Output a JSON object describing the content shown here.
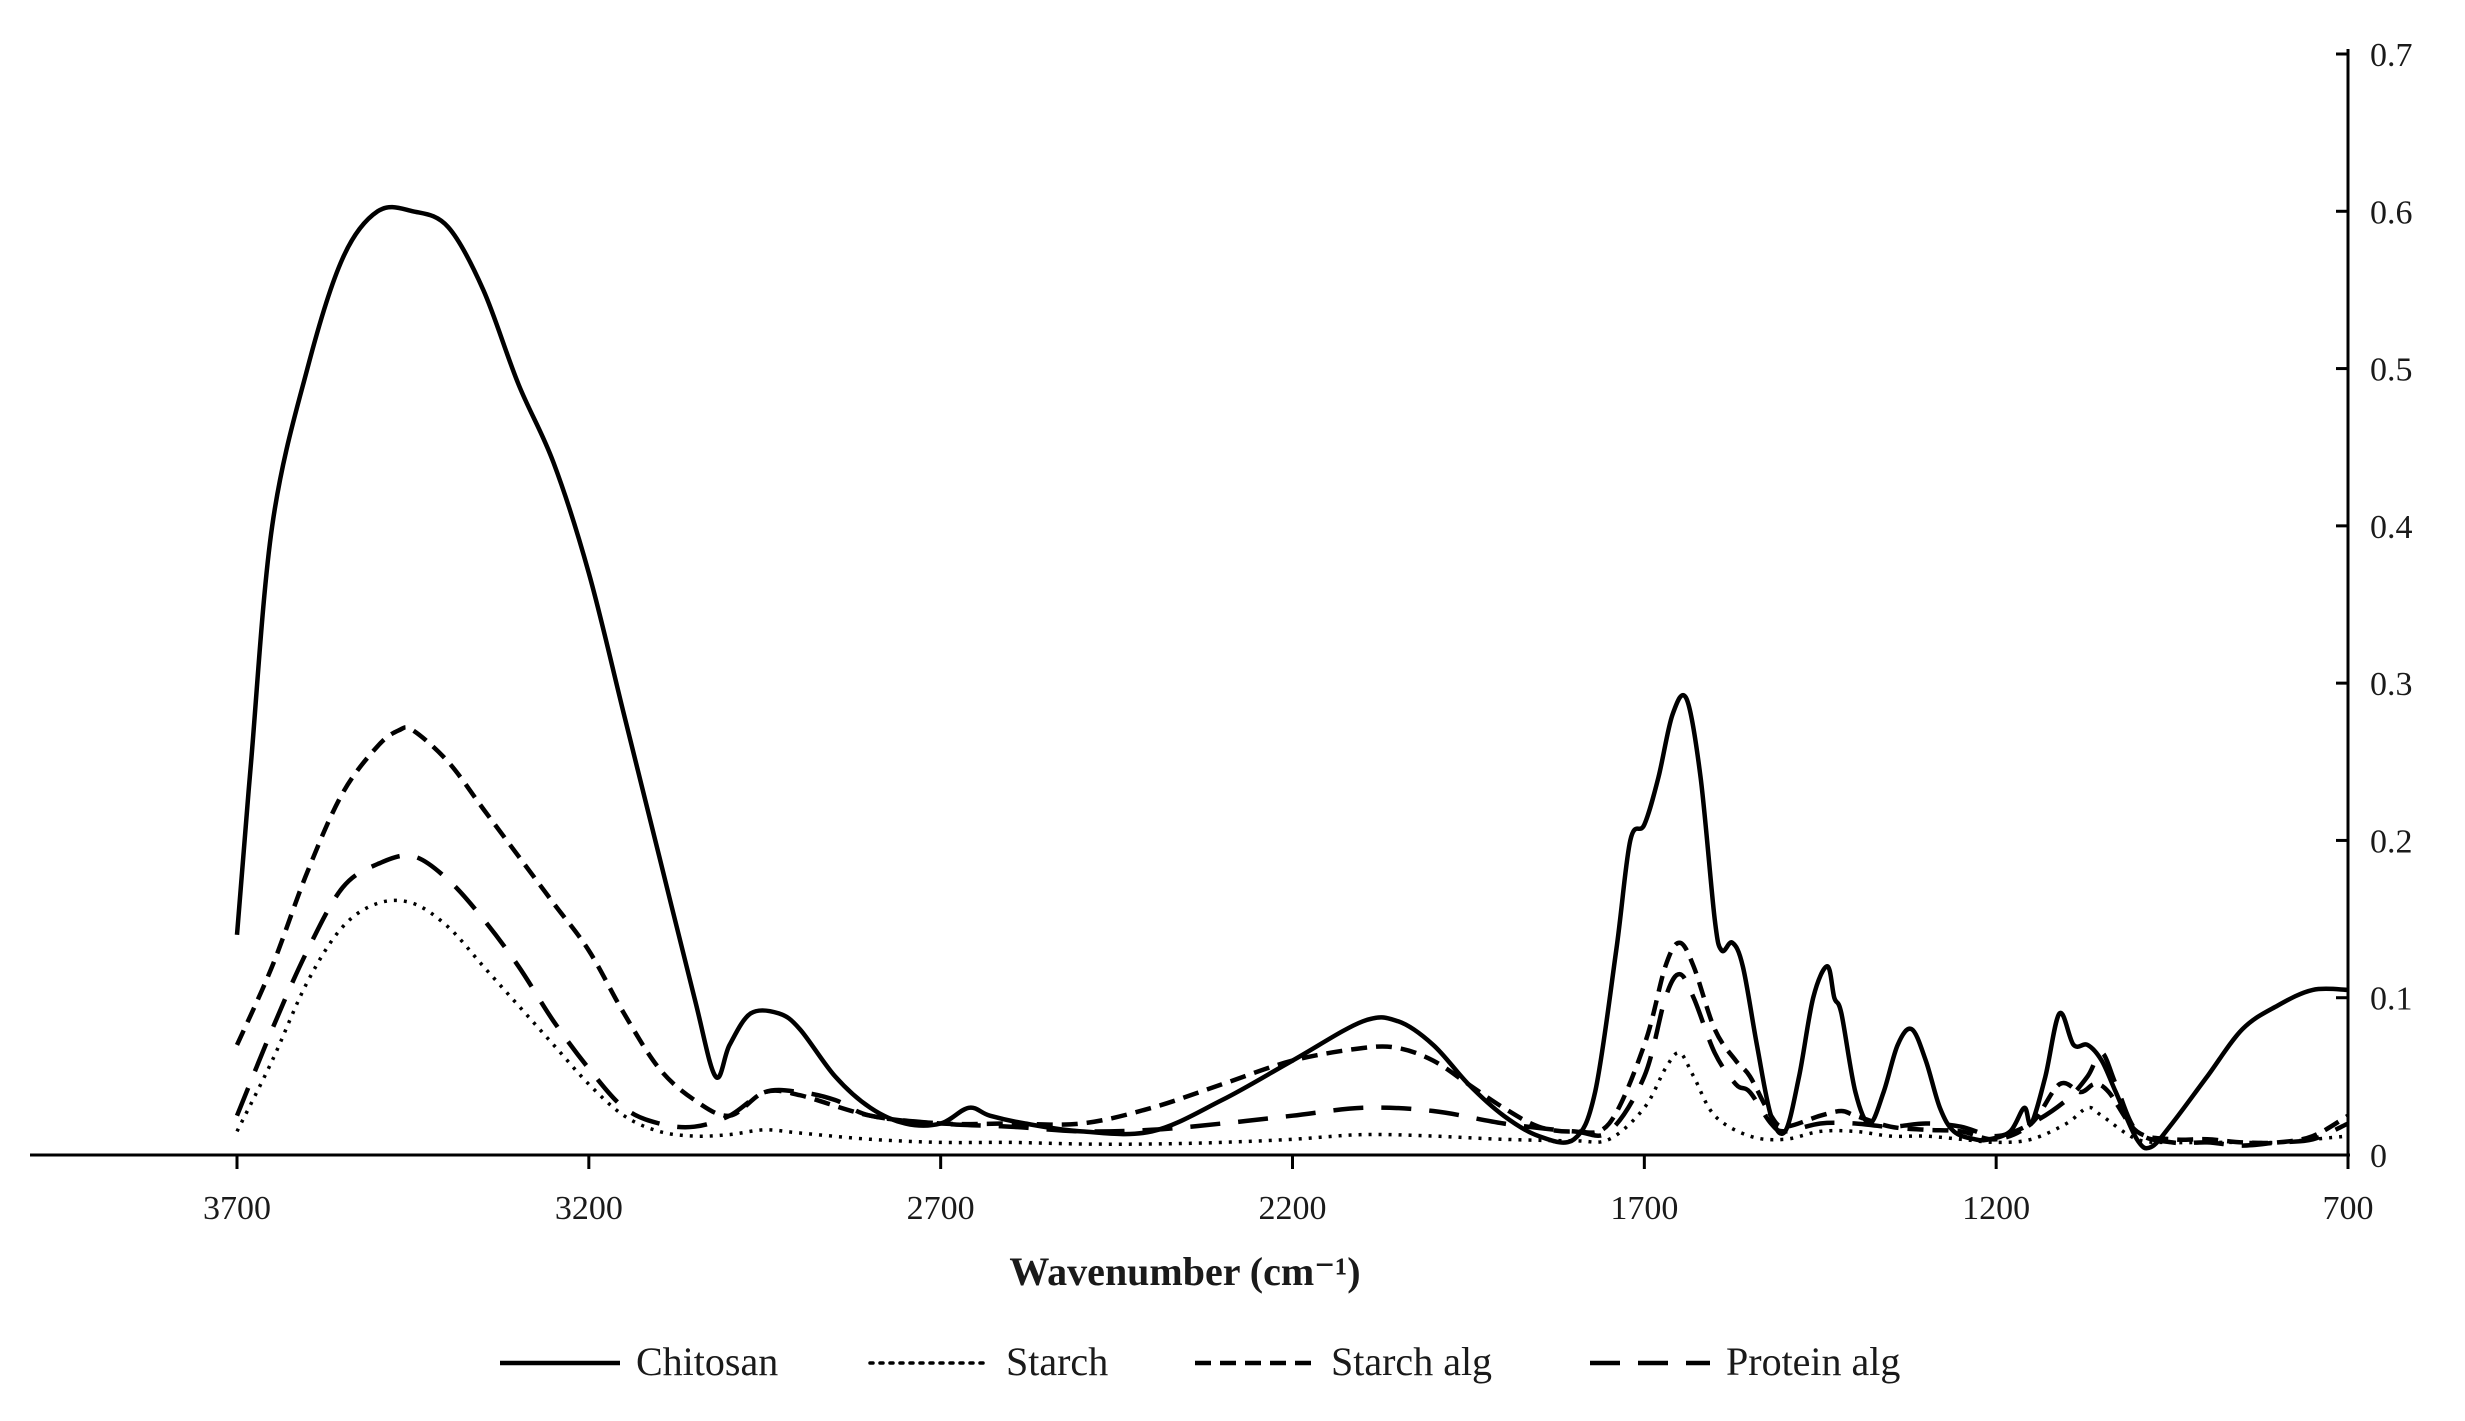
{
  "chart_data": {
    "type": "line",
    "xlabel": "Wavenumber (cm⁻¹)",
    "x_reversed": true,
    "xlim": [
      3700,
      700
    ],
    "ylim": [
      0,
      0.7
    ],
    "x_ticks": [
      "3700",
      "3200",
      "2700",
      "2200",
      "1700",
      "1200",
      "700"
    ],
    "y_ticks": [
      "0",
      "0.1",
      "0.2",
      "0.3",
      "0.4",
      "0.5",
      "0.6",
      "0.7"
    ],
    "y_axis_position": "right",
    "grid": false,
    "legend_position": "bottom",
    "series": [
      {
        "name": "Chitosan",
        "style": "solid",
        "points": [
          [
            3700,
            0.14
          ],
          [
            3680,
            0.25
          ],
          [
            3650,
            0.4
          ],
          [
            3600,
            0.5
          ],
          [
            3550,
            0.57
          ],
          [
            3500,
            0.6
          ],
          [
            3450,
            0.6
          ],
          [
            3400,
            0.59
          ],
          [
            3350,
            0.55
          ],
          [
            3300,
            0.49
          ],
          [
            3250,
            0.44
          ],
          [
            3200,
            0.37
          ],
          [
            3150,
            0.28
          ],
          [
            3100,
            0.19
          ],
          [
            3050,
            0.1
          ],
          [
            3020,
            0.05
          ],
          [
            3000,
            0.07
          ],
          [
            2970,
            0.09
          ],
          [
            2930,
            0.09
          ],
          [
            2900,
            0.08
          ],
          [
            2850,
            0.05
          ],
          [
            2800,
            0.03
          ],
          [
            2750,
            0.02
          ],
          [
            2700,
            0.02
          ],
          [
            2660,
            0.03
          ],
          [
            2630,
            0.025
          ],
          [
            2580,
            0.02
          ],
          [
            2500,
            0.015
          ],
          [
            2400,
            0.015
          ],
          [
            2300,
            0.035
          ],
          [
            2200,
            0.06
          ],
          [
            2100,
            0.085
          ],
          [
            2050,
            0.085
          ],
          [
            2000,
            0.07
          ],
          [
            1950,
            0.045
          ],
          [
            1900,
            0.025
          ],
          [
            1850,
            0.012
          ],
          [
            1800,
            0.01
          ],
          [
            1770,
            0.04
          ],
          [
            1740,
            0.13
          ],
          [
            1720,
            0.2
          ],
          [
            1700,
            0.21
          ],
          [
            1680,
            0.24
          ],
          [
            1660,
            0.28
          ],
          [
            1640,
            0.29
          ],
          [
            1620,
            0.24
          ],
          [
            1600,
            0.15
          ],
          [
            1590,
            0.13
          ],
          [
            1575,
            0.135
          ],
          [
            1560,
            0.12
          ],
          [
            1540,
            0.07
          ],
          [
            1520,
            0.025
          ],
          [
            1500,
            0.015
          ],
          [
            1480,
            0.05
          ],
          [
            1460,
            0.1
          ],
          [
            1440,
            0.12
          ],
          [
            1430,
            0.1
          ],
          [
            1420,
            0.09
          ],
          [
            1400,
            0.04
          ],
          [
            1380,
            0.02
          ],
          [
            1360,
            0.04
          ],
          [
            1340,
            0.07
          ],
          [
            1320,
            0.08
          ],
          [
            1300,
            0.06
          ],
          [
            1280,
            0.03
          ],
          [
            1260,
            0.015
          ],
          [
            1230,
            0.01
          ],
          [
            1210,
            0.01
          ],
          [
            1180,
            0.015
          ],
          [
            1160,
            0.03
          ],
          [
            1150,
            0.02
          ],
          [
            1130,
            0.05
          ],
          [
            1110,
            0.09
          ],
          [
            1090,
            0.07
          ],
          [
            1070,
            0.07
          ],
          [
            1050,
            0.06
          ],
          [
            1030,
            0.04
          ],
          [
            1000,
            0.01
          ],
          [
            980,
            0.005
          ],
          [
            950,
            0.02
          ],
          [
            900,
            0.05
          ],
          [
            850,
            0.08
          ],
          [
            800,
            0.095
          ],
          [
            750,
            0.105
          ],
          [
            700,
            0.105
          ]
        ]
      },
      {
        "name": "Starch",
        "style": "dotted",
        "points": [
          [
            3700,
            0.015
          ],
          [
            3650,
            0.06
          ],
          [
            3600,
            0.11
          ],
          [
            3550,
            0.145
          ],
          [
            3500,
            0.16
          ],
          [
            3450,
            0.16
          ],
          [
            3400,
            0.145
          ],
          [
            3350,
            0.12
          ],
          [
            3300,
            0.095
          ],
          [
            3250,
            0.07
          ],
          [
            3200,
            0.045
          ],
          [
            3150,
            0.025
          ],
          [
            3100,
            0.015
          ],
          [
            3050,
            0.012
          ],
          [
            3000,
            0.013
          ],
          [
            2950,
            0.016
          ],
          [
            2900,
            0.014
          ],
          [
            2800,
            0.01
          ],
          [
            2700,
            0.008
          ],
          [
            2600,
            0.008
          ],
          [
            2500,
            0.007
          ],
          [
            2400,
            0.007
          ],
          [
            2300,
            0.008
          ],
          [
            2200,
            0.01
          ],
          [
            2100,
            0.013
          ],
          [
            2000,
            0.012
          ],
          [
            1900,
            0.01
          ],
          [
            1800,
            0.009
          ],
          [
            1750,
            0.01
          ],
          [
            1700,
            0.03
          ],
          [
            1670,
            0.055
          ],
          [
            1650,
            0.065
          ],
          [
            1630,
            0.05
          ],
          [
            1600,
            0.025
          ],
          [
            1550,
            0.012
          ],
          [
            1500,
            0.01
          ],
          [
            1450,
            0.015
          ],
          [
            1400,
            0.015
          ],
          [
            1350,
            0.012
          ],
          [
            1300,
            0.012
          ],
          [
            1250,
            0.01
          ],
          [
            1200,
            0.008
          ],
          [
            1150,
            0.01
          ],
          [
            1100,
            0.02
          ],
          [
            1070,
            0.03
          ],
          [
            1050,
            0.025
          ],
          [
            1000,
            0.01
          ],
          [
            950,
            0.008
          ],
          [
            900,
            0.008
          ],
          [
            850,
            0.008
          ],
          [
            800,
            0.008
          ],
          [
            750,
            0.01
          ],
          [
            700,
            0.012
          ]
        ]
      },
      {
        "name": "Starch alg",
        "style": "short-dash",
        "points": [
          [
            3700,
            0.07
          ],
          [
            3650,
            0.12
          ],
          [
            3600,
            0.18
          ],
          [
            3550,
            0.23
          ],
          [
            3500,
            0.26
          ],
          [
            3470,
            0.27
          ],
          [
            3450,
            0.27
          ],
          [
            3400,
            0.25
          ],
          [
            3350,
            0.22
          ],
          [
            3300,
            0.19
          ],
          [
            3250,
            0.16
          ],
          [
            3200,
            0.13
          ],
          [
            3150,
            0.09
          ],
          [
            3100,
            0.055
          ],
          [
            3050,
            0.035
          ],
          [
            3000,
            0.025
          ],
          [
            2950,
            0.04
          ],
          [
            2900,
            0.038
          ],
          [
            2800,
            0.025
          ],
          [
            2700,
            0.02
          ],
          [
            2600,
            0.02
          ],
          [
            2500,
            0.02
          ],
          [
            2400,
            0.03
          ],
          [
            2300,
            0.045
          ],
          [
            2200,
            0.06
          ],
          [
            2100,
            0.068
          ],
          [
            2050,
            0.068
          ],
          [
            2000,
            0.06
          ],
          [
            1950,
            0.045
          ],
          [
            1900,
            0.03
          ],
          [
            1850,
            0.018
          ],
          [
            1800,
            0.015
          ],
          [
            1750,
            0.02
          ],
          [
            1700,
            0.07
          ],
          [
            1670,
            0.12
          ],
          [
            1650,
            0.135
          ],
          [
            1630,
            0.12
          ],
          [
            1600,
            0.08
          ],
          [
            1570,
            0.06
          ],
          [
            1550,
            0.05
          ],
          [
            1520,
            0.025
          ],
          [
            1500,
            0.018
          ],
          [
            1450,
            0.025
          ],
          [
            1420,
            0.028
          ],
          [
            1400,
            0.025
          ],
          [
            1350,
            0.018
          ],
          [
            1300,
            0.016
          ],
          [
            1250,
            0.015
          ],
          [
            1200,
            0.01
          ],
          [
            1150,
            0.02
          ],
          [
            1110,
            0.045
          ],
          [
            1080,
            0.04
          ],
          [
            1060,
            0.045
          ],
          [
            1040,
            0.04
          ],
          [
            1000,
            0.015
          ],
          [
            950,
            0.01
          ],
          [
            900,
            0.01
          ],
          [
            850,
            0.008
          ],
          [
            800,
            0.008
          ],
          [
            750,
            0.012
          ],
          [
            700,
            0.025
          ]
        ]
      },
      {
        "name": "Protein alg",
        "style": "long-dash",
        "points": [
          [
            3700,
            0.025
          ],
          [
            3650,
            0.08
          ],
          [
            3600,
            0.13
          ],
          [
            3550,
            0.17
          ],
          [
            3500,
            0.185
          ],
          [
            3450,
            0.19
          ],
          [
            3400,
            0.175
          ],
          [
            3350,
            0.15
          ],
          [
            3300,
            0.12
          ],
          [
            3250,
            0.085
          ],
          [
            3200,
            0.055
          ],
          [
            3150,
            0.03
          ],
          [
            3100,
            0.02
          ],
          [
            3050,
            0.018
          ],
          [
            3000,
            0.025
          ],
          [
            2950,
            0.04
          ],
          [
            2900,
            0.04
          ],
          [
            2850,
            0.035
          ],
          [
            2800,
            0.025
          ],
          [
            2700,
            0.02
          ],
          [
            2600,
            0.018
          ],
          [
            2500,
            0.015
          ],
          [
            2400,
            0.016
          ],
          [
            2300,
            0.02
          ],
          [
            2200,
            0.025
          ],
          [
            2100,
            0.03
          ],
          [
            2000,
            0.028
          ],
          [
            1900,
            0.02
          ],
          [
            1800,
            0.015
          ],
          [
            1750,
            0.015
          ],
          [
            1700,
            0.05
          ],
          [
            1670,
            0.1
          ],
          [
            1650,
            0.115
          ],
          [
            1630,
            0.1
          ],
          [
            1600,
            0.065
          ],
          [
            1570,
            0.045
          ],
          [
            1550,
            0.04
          ],
          [
            1520,
            0.02
          ],
          [
            1500,
            0.015
          ],
          [
            1450,
            0.02
          ],
          [
            1400,
            0.02
          ],
          [
            1350,
            0.018
          ],
          [
            1300,
            0.02
          ],
          [
            1250,
            0.018
          ],
          [
            1200,
            0.012
          ],
          [
            1150,
            0.02
          ],
          [
            1100,
            0.035
          ],
          [
            1070,
            0.05
          ],
          [
            1050,
            0.065
          ],
          [
            1030,
            0.045
          ],
          [
            1000,
            0.015
          ],
          [
            950,
            0.008
          ],
          [
            900,
            0.008
          ],
          [
            850,
            0.006
          ],
          [
            800,
            0.008
          ],
          [
            750,
            0.01
          ],
          [
            700,
            0.02
          ]
        ]
      }
    ]
  },
  "legend": {
    "items": [
      {
        "label": "Chitosan",
        "style": "solid"
      },
      {
        "label": "Starch",
        "style": "dotted"
      },
      {
        "label": "Starch alg",
        "style": "short-dash"
      },
      {
        "label": "Protein alg",
        "style": "long-dash"
      }
    ]
  }
}
